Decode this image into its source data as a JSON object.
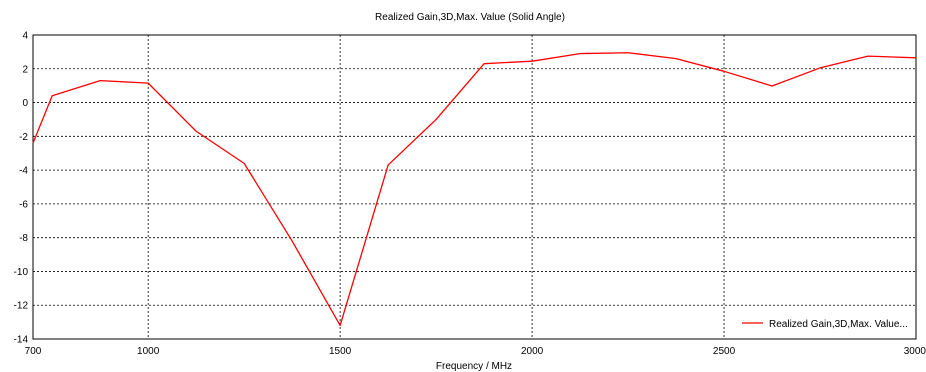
{
  "chart_data": {
    "type": "line",
    "title": "Realized Gain,3D,Max. Value (Solid Angle)",
    "xlabel": "Frequency / MHz",
    "ylabel": "",
    "xlim": [
      700,
      3000
    ],
    "ylim": [
      -14,
      4
    ],
    "xticks": [
      700,
      1000,
      1500,
      2000,
      2500,
      3000
    ],
    "yticks": [
      4,
      2,
      0,
      -2,
      -4,
      -6,
      -8,
      -10,
      -12,
      -14
    ],
    "grid": true,
    "legend_position": "bottom-right",
    "series": [
      {
        "name": "Realized Gain,3D,Max. Value...",
        "color": "#ff0000",
        "x": [
          700,
          750,
          875,
          1000,
          1125,
          1250,
          1375,
          1500,
          1625,
          1750,
          1875,
          2000,
          2125,
          2250,
          2375,
          2500,
          2625,
          2750,
          2875,
          3000
        ],
        "y": [
          -2.4,
          0.4,
          1.3,
          1.15,
          -1.7,
          -3.6,
          -8.2,
          -13.2,
          -3.7,
          -1.0,
          2.3,
          2.45,
          2.9,
          2.95,
          2.6,
          1.85,
          0.98,
          2.05,
          2.75,
          2.65
        ]
      }
    ]
  }
}
